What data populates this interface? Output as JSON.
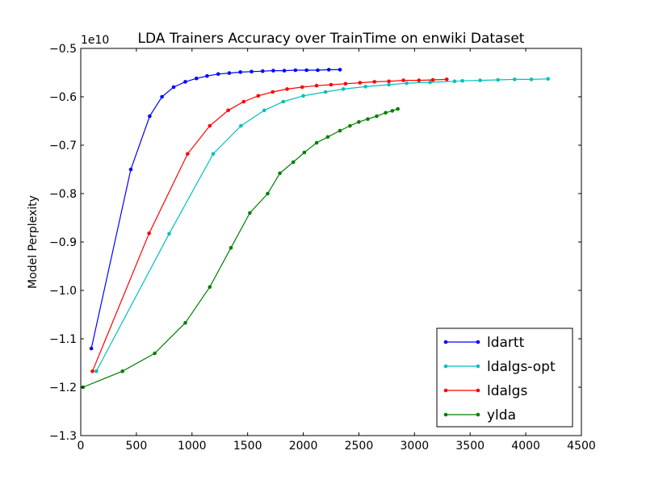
{
  "chart_data": {
    "type": "line",
    "title": "LDA Trainers Accuracy over TrainTime on enwiki Dataset",
    "xlabel": "",
    "ylabel": "Model Perplexity",
    "y_offset_label": "1e10",
    "xlim": [
      0,
      4500
    ],
    "ylim": [
      -1.3,
      -0.5
    ],
    "x_ticks": [
      0,
      500,
      1000,
      1500,
      2000,
      2500,
      3000,
      3500,
      4000,
      4500
    ],
    "x_tick_labels": [
      "0",
      "500",
      "1000",
      "1500",
      "2000",
      "2500",
      "3000",
      "3500",
      "4000",
      "4500"
    ],
    "y_ticks": [
      -0.5,
      -0.6,
      -0.7,
      -0.8,
      -0.9,
      -1.0,
      -1.1,
      -1.2,
      -1.3
    ],
    "y_tick_labels": [
      "−0.5",
      "−0.6",
      "−0.7",
      "−0.8",
      "−0.9",
      "−1.0",
      "−1.1",
      "−1.2",
      "−1.3"
    ],
    "grid": false,
    "legend_position": "bottom-right",
    "series": [
      {
        "name": "ldartt",
        "color": "#0000ff",
        "points": [
          [
            95,
            -1.12
          ],
          [
            450,
            -0.75
          ],
          [
            620,
            -0.64
          ],
          [
            730,
            -0.6
          ],
          [
            835,
            -0.58
          ],
          [
            940,
            -0.569
          ],
          [
            1040,
            -0.562
          ],
          [
            1135,
            -0.557
          ],
          [
            1235,
            -0.553
          ],
          [
            1335,
            -0.551
          ],
          [
            1435,
            -0.549
          ],
          [
            1535,
            -0.548
          ],
          [
            1635,
            -0.547
          ],
          [
            1730,
            -0.546
          ],
          [
            1830,
            -0.546
          ],
          [
            1930,
            -0.545
          ],
          [
            2030,
            -0.545
          ],
          [
            2130,
            -0.545
          ],
          [
            2230,
            -0.544
          ],
          [
            2330,
            -0.544
          ]
        ]
      },
      {
        "name": "ldalgs-opt",
        "color": "#00bfbf",
        "points": [
          [
            140,
            -1.167
          ],
          [
            795,
            -0.883
          ],
          [
            1190,
            -0.718
          ],
          [
            1440,
            -0.66
          ],
          [
            1650,
            -0.628
          ],
          [
            1820,
            -0.61
          ],
          [
            2000,
            -0.598
          ],
          [
            2200,
            -0.59
          ],
          [
            2360,
            -0.584
          ],
          [
            2560,
            -0.579
          ],
          [
            2770,
            -0.575
          ],
          [
            2930,
            -0.572
          ],
          [
            3140,
            -0.57
          ],
          [
            3360,
            -0.568
          ],
          [
            3430,
            -0.567
          ],
          [
            3590,
            -0.566
          ],
          [
            3750,
            -0.565
          ],
          [
            3900,
            -0.564
          ],
          [
            4050,
            -0.564
          ],
          [
            4200,
            -0.563
          ]
        ]
      },
      {
        "name": "ldalgs",
        "color": "#ff0000",
        "points": [
          [
            105,
            -1.167
          ],
          [
            615,
            -0.882
          ],
          [
            960,
            -0.718
          ],
          [
            1160,
            -0.66
          ],
          [
            1325,
            -0.628
          ],
          [
            1465,
            -0.61
          ],
          [
            1595,
            -0.598
          ],
          [
            1725,
            -0.59
          ],
          [
            1855,
            -0.584
          ],
          [
            1990,
            -0.58
          ],
          [
            2120,
            -0.577
          ],
          [
            2250,
            -0.575
          ],
          [
            2380,
            -0.573
          ],
          [
            2510,
            -0.571
          ],
          [
            2640,
            -0.569
          ],
          [
            2770,
            -0.568
          ],
          [
            2900,
            -0.566
          ],
          [
            3040,
            -0.566
          ],
          [
            3165,
            -0.565
          ],
          [
            3290,
            -0.564
          ]
        ]
      },
      {
        "name": "ylda",
        "color": "#008000",
        "points": [
          [
            20,
            -1.2
          ],
          [
            375,
            -1.167
          ],
          [
            665,
            -1.13
          ],
          [
            940,
            -1.067
          ],
          [
            1160,
            -0.993
          ],
          [
            1350,
            -0.912
          ],
          [
            1520,
            -0.84
          ],
          [
            1680,
            -0.8
          ],
          [
            1790,
            -0.758
          ],
          [
            1910,
            -0.735
          ],
          [
            2010,
            -0.715
          ],
          [
            2120,
            -0.695
          ],
          [
            2220,
            -0.683
          ],
          [
            2330,
            -0.67
          ],
          [
            2420,
            -0.66
          ],
          [
            2500,
            -0.652
          ],
          [
            2580,
            -0.646
          ],
          [
            2660,
            -0.64
          ],
          [
            2740,
            -0.633
          ],
          [
            2800,
            -0.629
          ],
          [
            2850,
            -0.625
          ]
        ]
      }
    ]
  }
}
